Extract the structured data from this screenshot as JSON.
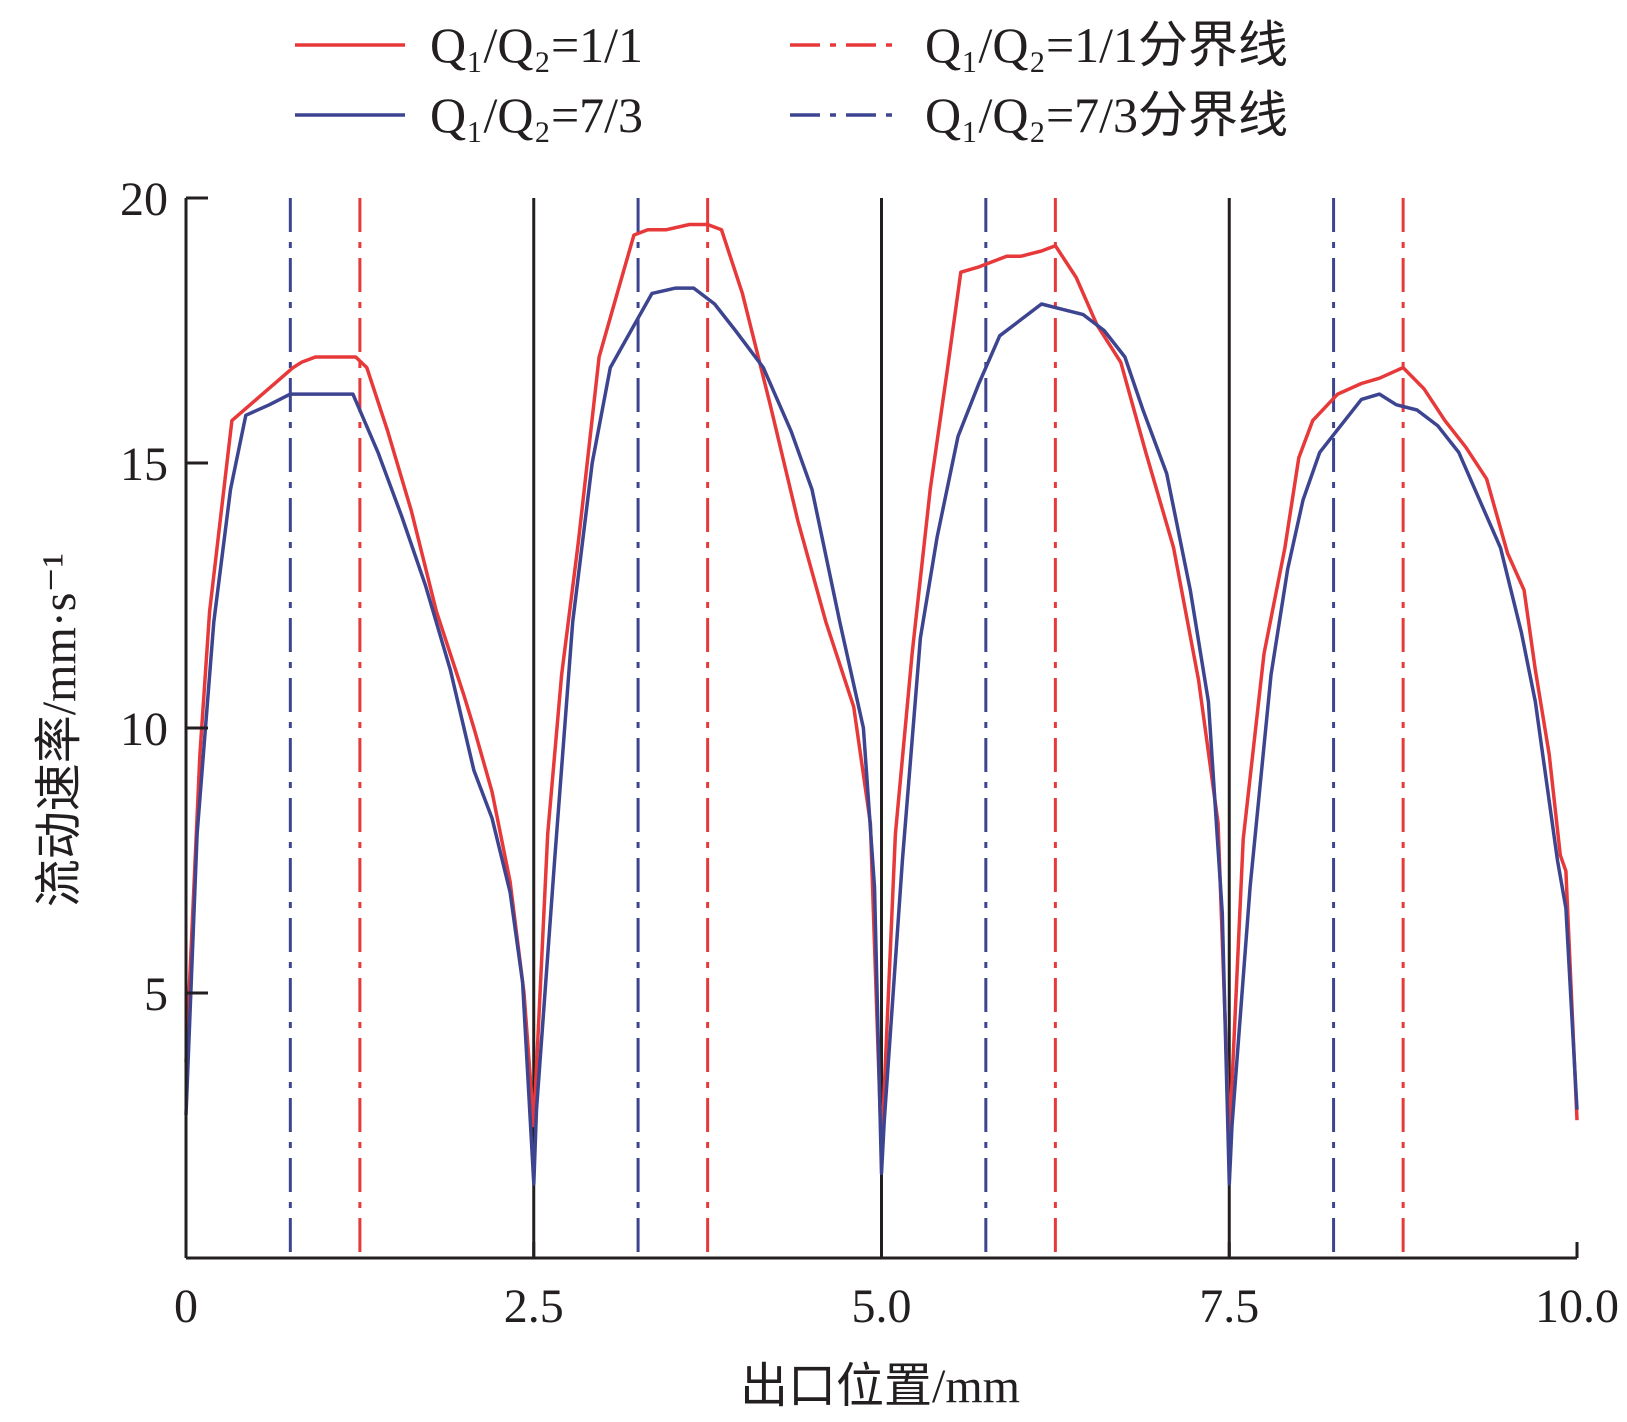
{
  "chart_data": {
    "type": "line",
    "xlabel": "出口位置/mm",
    "ylabel": "流动速率/mm·s⁻¹",
    "xlim": [
      0,
      10
    ],
    "ylim": [
      0,
      20
    ],
    "x_ticks": [
      "0",
      "2.5",
      "5.0",
      "7.5",
      "10.0"
    ],
    "y_ticks": [
      "5",
      "10",
      "15",
      "20"
    ],
    "grid": false,
    "legend_position": "top",
    "legend": [
      {
        "label": "Q₁/Q₂=1/1",
        "color": "#e8393a",
        "style": "solid"
      },
      {
        "label": "Q₁/Q₂=7/3",
        "color": "#3d4590",
        "style": "solid"
      },
      {
        "label": "Q₁/Q₂=1/1分界线",
        "color": "#e8393a",
        "style": "dashdot"
      },
      {
        "label": "Q₁/Q₂=7/3分界线",
        "color": "#3d4590",
        "style": "dashdot"
      }
    ],
    "series": [
      {
        "name": "Q₁/Q₂=1/1",
        "color": "#e8393a",
        "x": [
          0.0,
          0.1,
          0.17,
          0.33,
          0.55,
          0.77,
          0.83,
          0.93,
          1.04,
          1.14,
          1.22,
          1.3,
          1.45,
          1.62,
          1.8,
          2.0,
          2.07,
          2.2,
          2.33,
          2.43,
          2.5,
          2.52,
          2.6,
          2.7,
          2.82,
          2.97,
          3.1,
          3.22,
          3.32,
          3.45,
          3.62,
          3.75,
          3.85,
          4.0,
          4.2,
          4.4,
          4.6,
          4.8,
          4.92,
          5.0,
          5.02,
          5.1,
          5.22,
          5.35,
          5.47,
          5.57,
          5.7,
          5.9,
          6.0,
          6.15,
          6.25,
          6.4,
          6.55,
          6.72,
          6.9,
          7.1,
          7.28,
          7.42,
          7.5,
          7.52,
          7.6,
          7.75,
          7.9,
          8.0,
          8.1,
          8.28,
          8.45,
          8.58,
          8.75,
          8.9,
          9.05,
          9.2,
          9.35,
          9.5,
          9.62,
          9.7,
          9.8,
          9.88,
          9.92,
          10.0
        ],
        "y": [
          3.7,
          9.5,
          12.2,
          15.8,
          16.3,
          16.8,
          16.9,
          17.0,
          17.0,
          17.0,
          17.0,
          16.8,
          15.6,
          14.1,
          12.2,
          10.6,
          10.0,
          8.8,
          7.1,
          5.0,
          2.5,
          3.6,
          8.0,
          11.0,
          13.5,
          17.0,
          18.2,
          19.3,
          19.4,
          19.4,
          19.5,
          19.5,
          19.4,
          18.2,
          16.1,
          13.9,
          12.0,
          10.4,
          8.2,
          2.0,
          3.2,
          8.0,
          11.4,
          14.5,
          16.7,
          18.6,
          18.7,
          18.9,
          18.9,
          19.0,
          19.1,
          18.5,
          17.6,
          16.9,
          15.2,
          13.4,
          10.9,
          8.2,
          2.3,
          3.3,
          7.9,
          11.4,
          13.4,
          15.1,
          15.8,
          16.3,
          16.5,
          16.6,
          16.8,
          16.4,
          15.8,
          15.3,
          14.7,
          13.3,
          12.6,
          11.1,
          9.5,
          7.6,
          7.3,
          2.6
        ]
      },
      {
        "name": "Q₁/Q₂=7/3",
        "color": "#3d4590",
        "x": [
          0.0,
          0.08,
          0.2,
          0.32,
          0.43,
          0.6,
          0.75,
          0.84,
          1.0,
          1.1,
          1.2,
          1.38,
          1.55,
          1.72,
          1.9,
          2.07,
          2.2,
          2.33,
          2.42,
          2.5,
          2.52,
          2.65,
          2.78,
          2.92,
          3.05,
          3.2,
          3.35,
          3.52,
          3.65,
          3.8,
          3.95,
          4.15,
          4.35,
          4.5,
          4.7,
          4.87,
          4.95,
          5.0,
          5.02,
          5.15,
          5.28,
          5.4,
          5.55,
          5.7,
          5.85,
          6.0,
          6.15,
          6.3,
          6.45,
          6.6,
          6.75,
          6.88,
          7.05,
          7.22,
          7.35,
          7.45,
          7.5,
          7.52,
          7.65,
          7.8,
          7.92,
          8.03,
          8.15,
          8.3,
          8.45,
          8.58,
          8.7,
          8.85,
          9.0,
          9.15,
          9.3,
          9.45,
          9.6,
          9.7,
          9.78,
          9.86,
          9.92,
          10.0
        ],
        "y": [
          2.7,
          8.0,
          12.0,
          14.5,
          15.9,
          16.1,
          16.3,
          16.3,
          16.3,
          16.3,
          16.3,
          15.2,
          14.0,
          12.7,
          11.1,
          9.2,
          8.3,
          6.9,
          5.2,
          1.4,
          2.8,
          7.5,
          12.0,
          15.0,
          16.8,
          17.5,
          18.2,
          18.3,
          18.3,
          18.0,
          17.5,
          16.8,
          15.6,
          14.5,
          12.0,
          10.0,
          7.0,
          1.6,
          2.6,
          7.5,
          11.7,
          13.6,
          15.5,
          16.5,
          17.4,
          17.7,
          18.0,
          17.9,
          17.8,
          17.5,
          17.0,
          16.0,
          14.8,
          12.6,
          10.5,
          6.5,
          1.4,
          2.5,
          7.0,
          11.0,
          13.0,
          14.3,
          15.2,
          15.7,
          16.2,
          16.3,
          16.1,
          16.0,
          15.7,
          15.2,
          14.3,
          13.4,
          11.8,
          10.5,
          9.0,
          7.5,
          6.6,
          2.8
        ]
      }
    ],
    "solid_dividers": [
      2.5,
      5.0,
      7.5
    ],
    "boundary_lines": [
      {
        "series": "Q₁/Q₂=1/1分界线",
        "color": "#e8393a",
        "x": [
          1.25,
          3.75,
          6.25,
          8.75
        ]
      },
      {
        "series": "Q₁/Q₂=7/3分界线",
        "color": "#3d4590",
        "x": [
          0.75,
          3.25,
          5.75,
          8.25
        ]
      }
    ]
  }
}
